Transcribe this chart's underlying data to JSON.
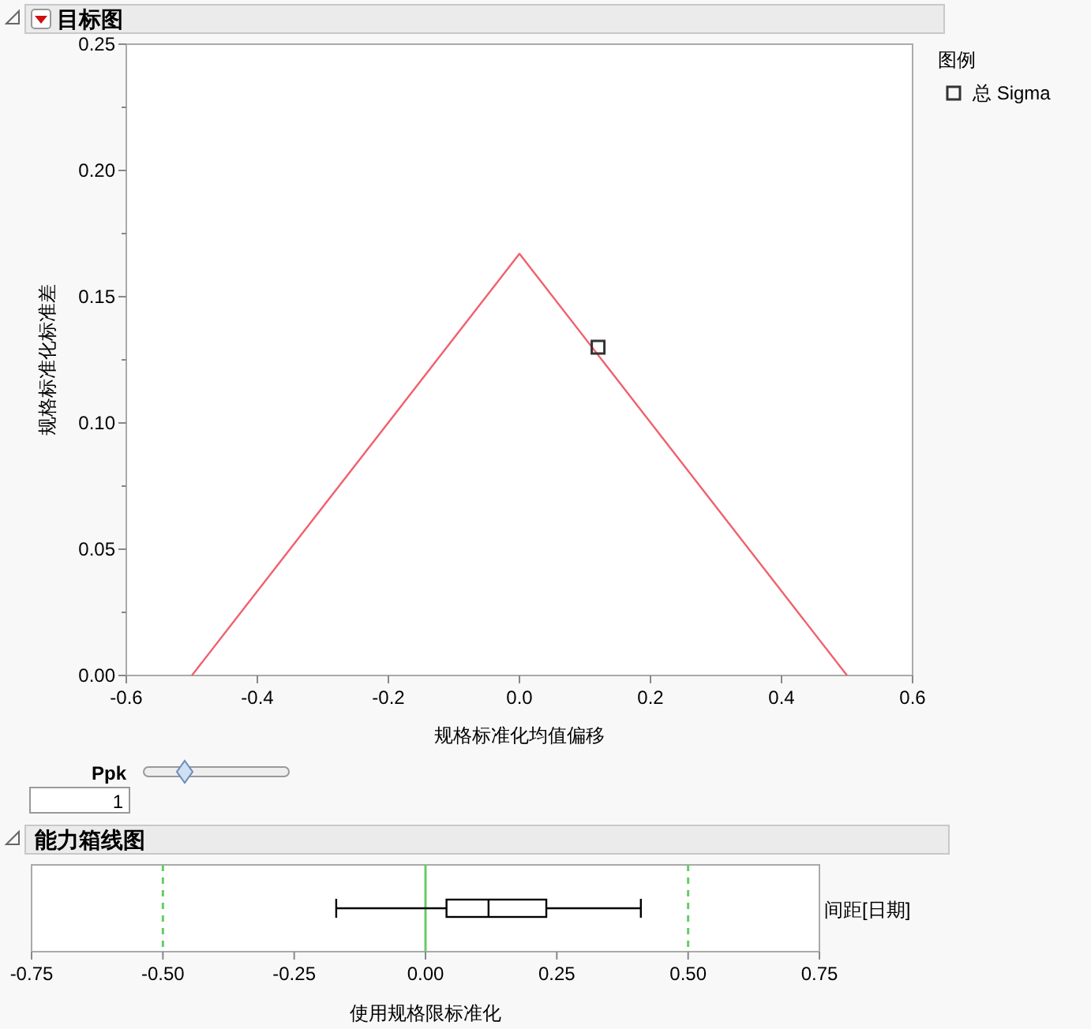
{
  "chart_data": [
    {
      "type": "line",
      "title": "目标图",
      "xlabel": "规格标准化均值偏移",
      "ylabel": "规格标准化标准差",
      "legend_title": "图例",
      "legend": "right",
      "xlim": [
        -0.6,
        0.6
      ],
      "xticks": [
        -0.6,
        -0.4,
        -0.2,
        {
          "value": 0,
          "label": "0.0"
        },
        0.2,
        0.4,
        0.6
      ],
      "ylim": [
        0,
        0.25
      ],
      "yticks": [
        {
          "value": 0,
          "label": "0.00"
        },
        {
          "value": 0.025,
          "label": null
        },
        0.05,
        {
          "value": 0.075,
          "label": null
        },
        {
          "value": 0.1,
          "label": "0.10"
        },
        {
          "value": 0.125,
          "label": null
        },
        0.15,
        {
          "value": 0.175,
          "label": null
        },
        {
          "value": 0.2,
          "label": "0.20"
        },
        {
          "value": 0.225,
          "label": null
        },
        0.25
      ],
      "series": [
        {
          "color": "#f0606e",
          "x": [
            -0.5,
            0,
            0.5
          ],
          "values": [
            0,
            0.167,
            0
          ]
        },
        {
          "type": "scatter",
          "name": "总 Sigma",
          "color": "#333333",
          "marker": "square",
          "x": [
            0.12
          ],
          "values": [
            0.13
          ]
        }
      ],
      "annotations": [
        "Ppk",
        "1"
      ]
    },
    {
      "type": "box",
      "orientation": "horizontal",
      "title": "能力箱线图",
      "xlabel": "使用规格限标准化",
      "categories": [
        "间距[日期]"
      ],
      "boxes": [
        {
          "low": -0.17,
          "q1": 0.04,
          "median": 0.12,
          "q3": 0.23,
          "high": 0.41
        }
      ],
      "color": "#000000",
      "xlim": [
        -0.75,
        0.75
      ],
      "xticks": [
        {
          "value": -0.75,
          "label": "-0.75"
        },
        {
          "value": -0.5,
          "label": "-0.50"
        },
        {
          "value": -0.25,
          "label": "-0.25"
        },
        {
          "value": 0,
          "label": "0.00"
        },
        {
          "value": 0.25,
          "label": "0.25"
        },
        {
          "value": 0.5,
          "label": "0.50"
        },
        {
          "value": 0.75,
          "label": "0.75"
        }
      ],
      "ref_lines": [
        {
          "axis": "x",
          "value": -0.5,
          "color": "#66cc66",
          "line_style": "dashed"
        },
        {
          "axis": "x",
          "value": 0,
          "color": "#66cc66",
          "line_style": "solid"
        },
        {
          "axis": "x",
          "value": 0.5,
          "color": "#66cc66",
          "line_style": "dashed"
        }
      ]
    }
  ]
}
